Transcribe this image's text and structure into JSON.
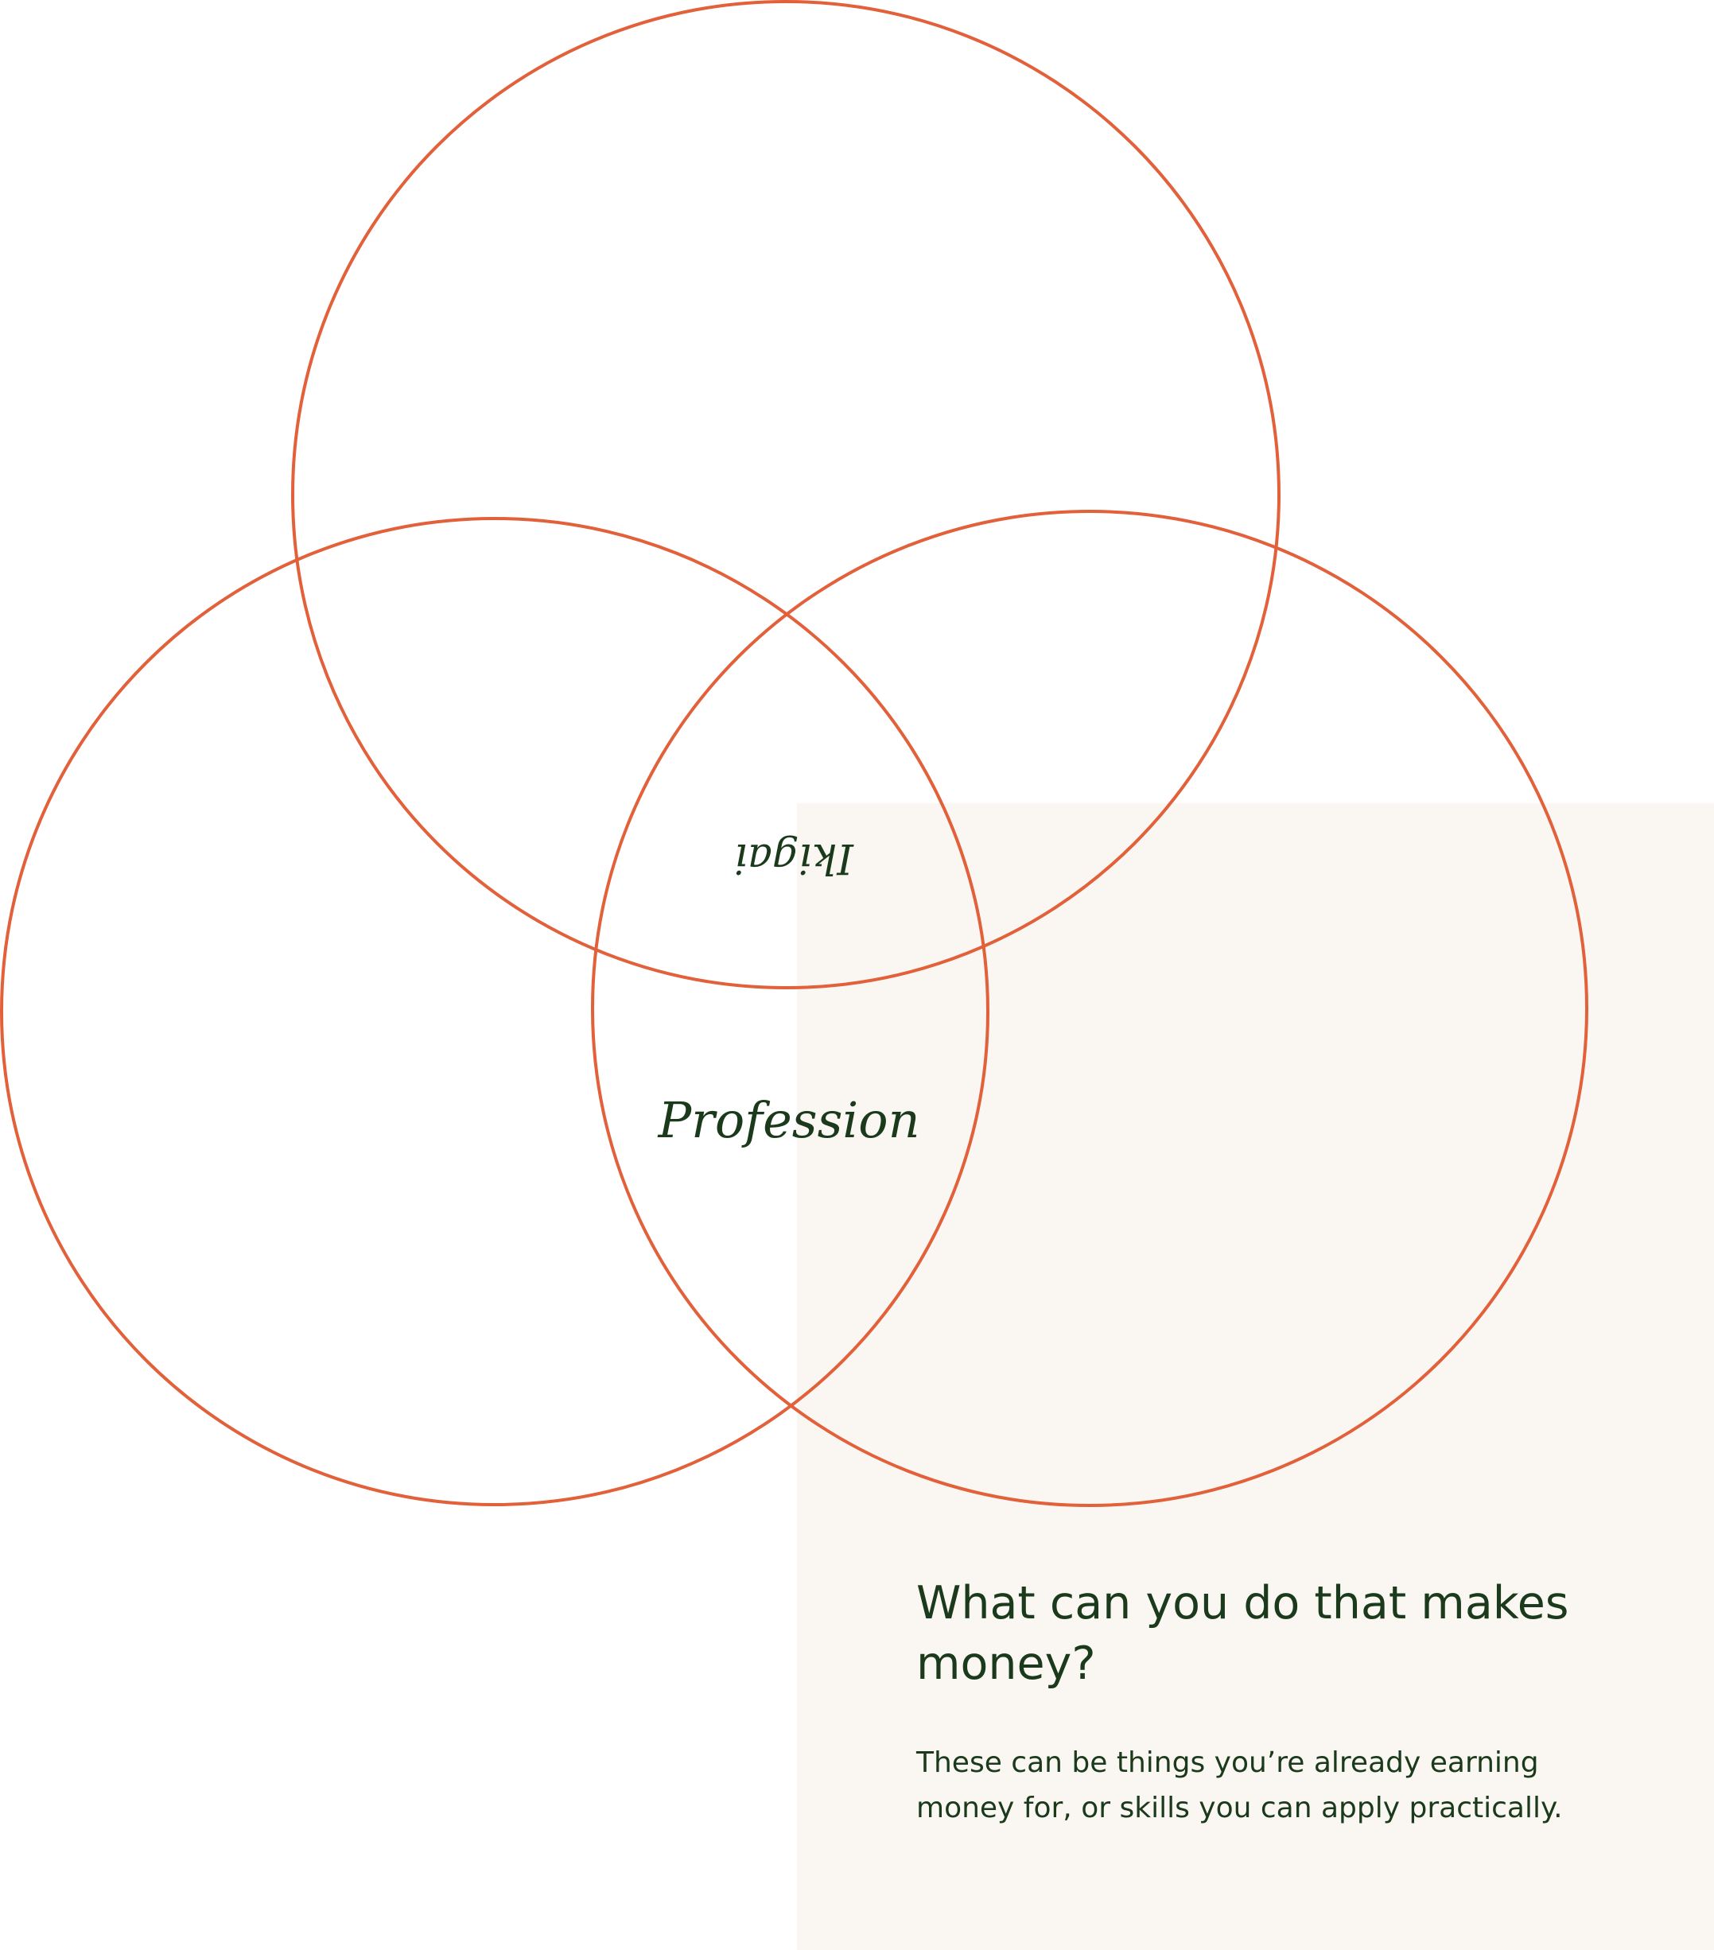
{
  "diagram": {
    "labels": {
      "center": "Ikigai",
      "highlighted_region": "Profession"
    },
    "colors": {
      "circle_stroke": "#e2603a",
      "profession_fill": "#ef8c69",
      "blue_region_fill": "#d7e5f1",
      "gradient_yellow": "#f7d874",
      "gradient_orange": "#ee8d6a",
      "gradient_blue": "#cfdfec",
      "text": "#1b3a1c",
      "panel_background": "#faf7f3"
    }
  },
  "panel": {
    "question": "What can you do that makes money?",
    "description": "These can be things you’re already earning money for, or skills you can apply practically."
  }
}
